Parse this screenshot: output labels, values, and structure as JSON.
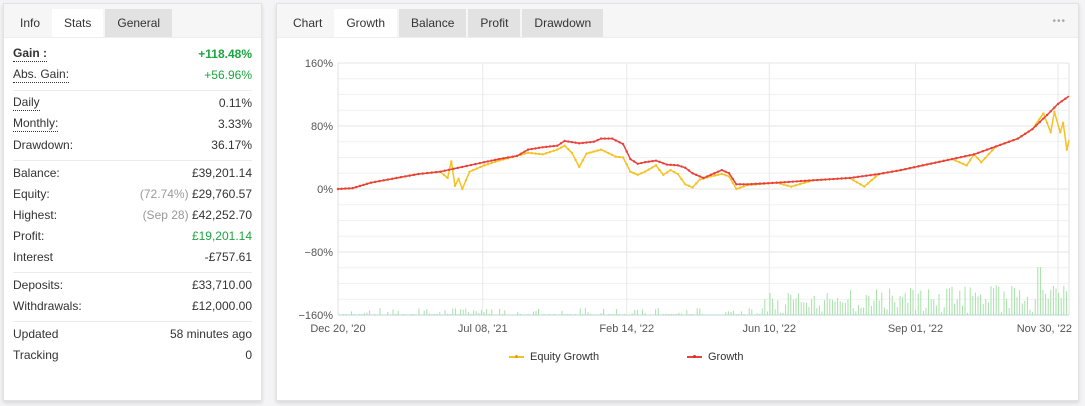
{
  "left_panel": {
    "tabs": [
      {
        "label": "Info",
        "state": "title"
      },
      {
        "label": "Stats",
        "state": "active"
      },
      {
        "label": "General",
        "state": "inactive"
      }
    ],
    "groups": [
      [
        {
          "label": "Gain :",
          "value": "+118.48%",
          "value_color": "#1da53f",
          "dotted": true,
          "bold": true
        },
        {
          "label": "Abs. Gain:",
          "value": "+56.96%",
          "value_color": "#1da53f",
          "dotted": true
        }
      ],
      [
        {
          "label": "Daily",
          "value": "0.11%",
          "dotted": true
        },
        {
          "label": "Monthly:",
          "value": "3.33%",
          "dotted": true
        },
        {
          "label": "Drawdown:",
          "value": "36.17%"
        }
      ],
      [
        {
          "label": "Balance:",
          "value": "£39,201.14"
        },
        {
          "label": "Equity:",
          "prefix": "(72.74%)",
          "value": "£29,760.57"
        },
        {
          "label": "Highest:",
          "prefix": "(Sep 28)",
          "value": "£42,252.70"
        },
        {
          "label": "Profit:",
          "value": "£19,201.14",
          "value_color": "#1da53f"
        },
        {
          "label": "Interest",
          "value": "-£757.61"
        }
      ],
      [
        {
          "label": "Deposits:",
          "value": "£33,710.00"
        },
        {
          "label": "Withdrawals:",
          "value": "£12,000.00"
        }
      ],
      [
        {
          "label": "Updated",
          "value": "58 minutes ago"
        },
        {
          "label": "Tracking",
          "value": "0"
        }
      ]
    ]
  },
  "right_panel": {
    "tabs": [
      {
        "label": "Chart",
        "state": "title"
      },
      {
        "label": "Growth",
        "state": "active"
      },
      {
        "label": "Balance",
        "state": "inactive"
      },
      {
        "label": "Profit",
        "state": "inactive"
      },
      {
        "label": "Drawdown",
        "state": "inactive"
      }
    ],
    "more_icon": "•••"
  },
  "chart_data": {
    "type": "line",
    "title": "Growth",
    "xlabel": "",
    "ylabel": "",
    "ylim": [
      -160,
      160
    ],
    "yticks": [
      "160%",
      "80%",
      "0%",
      "−80%",
      "−160%"
    ],
    "ytick_values": [
      160,
      80,
      0,
      -80,
      -160
    ],
    "xticks": [
      "Dec 20, '20",
      "Jul 08, '21",
      "Feb 14, '22",
      "Jun 10, '22",
      "Sep 01, '22",
      "Nov 30, '22"
    ],
    "grid": true,
    "legend_position": "bottom",
    "colors": {
      "equity": "#f6c223",
      "growth": "#e8413c",
      "bars": "#a6e0a8"
    },
    "series": [
      {
        "name": "Growth",
        "points": [
          [
            0,
            0
          ],
          [
            0.02,
            1
          ],
          [
            0.045,
            8
          ],
          [
            0.08,
            14
          ],
          [
            0.11,
            19
          ],
          [
            0.14,
            22
          ],
          [
            0.17,
            28
          ],
          [
            0.2,
            34
          ],
          [
            0.22,
            38
          ],
          [
            0.245,
            42
          ],
          [
            0.26,
            50
          ],
          [
            0.28,
            53
          ],
          [
            0.3,
            55
          ],
          [
            0.31,
            61
          ],
          [
            0.33,
            58
          ],
          [
            0.35,
            60
          ],
          [
            0.36,
            64
          ],
          [
            0.375,
            64
          ],
          [
            0.39,
            57
          ],
          [
            0.4,
            38
          ],
          [
            0.41,
            32
          ],
          [
            0.42,
            34
          ],
          [
            0.435,
            36
          ],
          [
            0.45,
            31
          ],
          [
            0.465,
            30
          ],
          [
            0.475,
            27
          ],
          [
            0.485,
            20
          ],
          [
            0.5,
            14
          ],
          [
            0.51,
            18
          ],
          [
            0.525,
            24
          ],
          [
            0.535,
            20
          ],
          [
            0.545,
            6
          ],
          [
            0.56,
            6
          ],
          [
            0.6,
            8
          ],
          [
            0.65,
            11
          ],
          [
            0.7,
            14
          ],
          [
            0.74,
            19
          ],
          [
            0.77,
            24
          ],
          [
            0.8,
            30
          ],
          [
            0.84,
            38
          ],
          [
            0.87,
            44
          ],
          [
            0.9,
            54
          ],
          [
            0.93,
            64
          ],
          [
            0.95,
            76
          ],
          [
            0.97,
            94
          ],
          [
            0.985,
            108
          ],
          [
            1.0,
            118
          ]
        ]
      },
      {
        "name": "Equity Growth",
        "points": [
          [
            0,
            0
          ],
          [
            0.02,
            1
          ],
          [
            0.045,
            8
          ],
          [
            0.08,
            14
          ],
          [
            0.11,
            19
          ],
          [
            0.14,
            22
          ],
          [
            0.15,
            14
          ],
          [
            0.155,
            35
          ],
          [
            0.16,
            4
          ],
          [
            0.165,
            13
          ],
          [
            0.17,
            0
          ],
          [
            0.18,
            22
          ],
          [
            0.2,
            30
          ],
          [
            0.22,
            36
          ],
          [
            0.245,
            42
          ],
          [
            0.26,
            46
          ],
          [
            0.28,
            44
          ],
          [
            0.3,
            50
          ],
          [
            0.31,
            55
          ],
          [
            0.32,
            46
          ],
          [
            0.33,
            28
          ],
          [
            0.34,
            45
          ],
          [
            0.36,
            50
          ],
          [
            0.38,
            41
          ],
          [
            0.39,
            40
          ],
          [
            0.4,
            22
          ],
          [
            0.41,
            18
          ],
          [
            0.42,
            22
          ],
          [
            0.435,
            30
          ],
          [
            0.445,
            18
          ],
          [
            0.455,
            24
          ],
          [
            0.465,
            19
          ],
          [
            0.475,
            6
          ],
          [
            0.485,
            2
          ],
          [
            0.495,
            12
          ],
          [
            0.51,
            16
          ],
          [
            0.525,
            19
          ],
          [
            0.535,
            16
          ],
          [
            0.545,
            0
          ],
          [
            0.56,
            5
          ],
          [
            0.6,
            8
          ],
          [
            0.62,
            3
          ],
          [
            0.65,
            11
          ],
          [
            0.7,
            14
          ],
          [
            0.72,
            3
          ],
          [
            0.74,
            19
          ],
          [
            0.77,
            24
          ],
          [
            0.8,
            30
          ],
          [
            0.84,
            38
          ],
          [
            0.86,
            30
          ],
          [
            0.87,
            44
          ],
          [
            0.88,
            34
          ],
          [
            0.9,
            54
          ],
          [
            0.93,
            64
          ],
          [
            0.95,
            76
          ],
          [
            0.965,
            96
          ],
          [
            0.975,
            72
          ],
          [
            0.98,
            98
          ],
          [
            0.988,
            72
          ],
          [
            0.992,
            84
          ],
          [
            0.997,
            50
          ],
          [
            1.0,
            62
          ]
        ]
      }
    ],
    "bars": {
      "name": "Daily profit bars (secondary)",
      "baseline": -160,
      "max_height_pct_of_axis": 0.18
    }
  }
}
